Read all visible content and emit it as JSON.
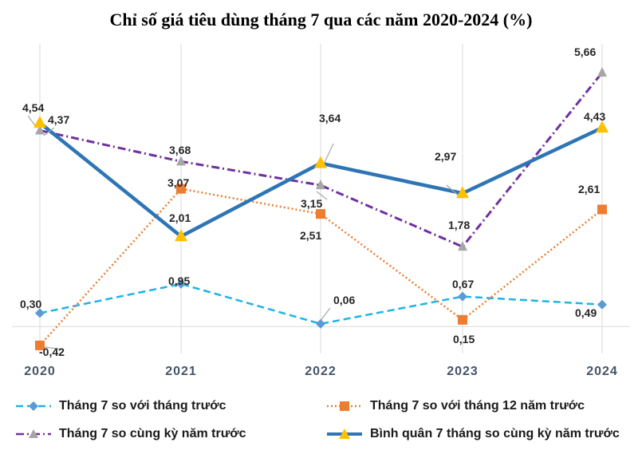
{
  "chart_data": {
    "type": "line",
    "title": "Chỉ số giá tiêu dùng tháng 7 qua các năm 2020-2024 (%)",
    "categories": [
      "2020",
      "2021",
      "2022",
      "2023",
      "2024"
    ],
    "series": [
      {
        "name": "Tháng 7 so với tháng trước",
        "values": [
          0.3,
          0.95,
          0.06,
          0.67,
          0.49
        ],
        "labels": [
          "0,30",
          "0,95",
          "0,06",
          "0,67",
          "0,49"
        ],
        "color": "#1fb3e6",
        "marker": "diamond",
        "dash": "dashed"
      },
      {
        "name": "Tháng 7 so với tháng 12 năm trước",
        "values": [
          -0.42,
          3.07,
          2.51,
          0.15,
          2.61
        ],
        "labels": [
          "-0,42",
          "3,07",
          "2,51",
          "0,15",
          "2,61"
        ],
        "color": "#ed7d31",
        "marker": "square",
        "dash": "dotted"
      },
      {
        "name": "Tháng 7 so cùng kỳ năm trước",
        "values": [
          4.37,
          3.68,
          3.15,
          1.78,
          5.66
        ],
        "labels": [
          "4,37",
          "3,68",
          "3,15",
          "1,78",
          "5,66"
        ],
        "color": "#7030a0",
        "marker": "triangle-gray",
        "dash": "dashdot"
      },
      {
        "name": "Bình quân 7 tháng so cùng kỳ năm trước",
        "values": [
          4.54,
          2.01,
          3.64,
          2.97,
          4.43
        ],
        "labels": [
          "4,54",
          "2,01",
          "3,64",
          "2,97",
          "4,43"
        ],
        "color": "#2e75b6",
        "marker": "triangle-yellow",
        "dash": "solid"
      }
    ],
    "ylim": [
      -0.6,
      6.3
    ],
    "grid": "vertical",
    "legend_position": "bottom"
  }
}
